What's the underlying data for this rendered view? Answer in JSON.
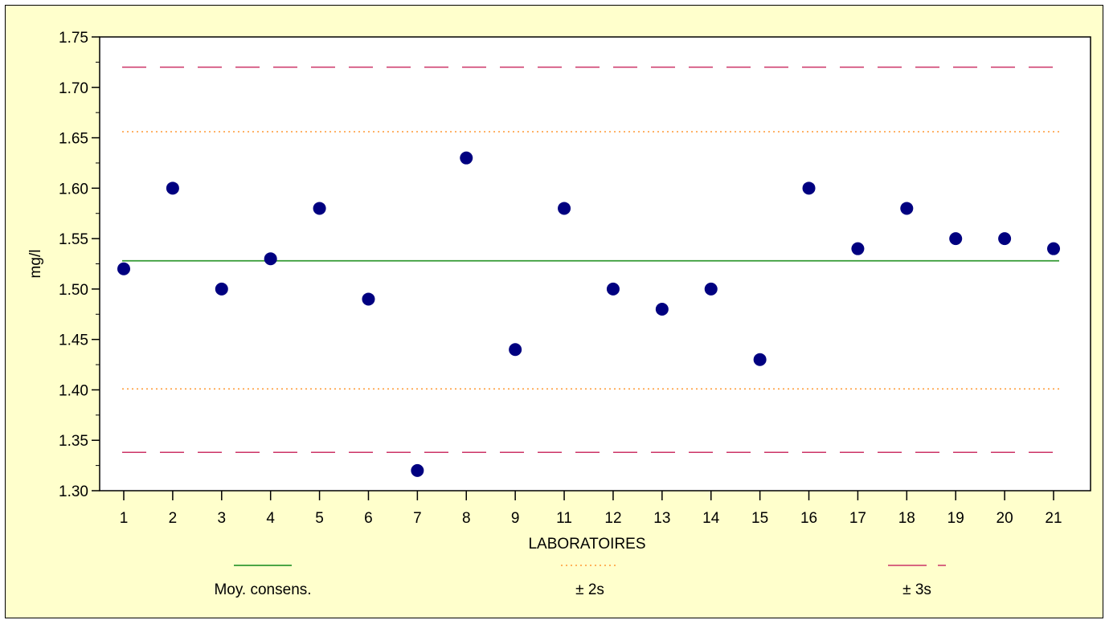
{
  "chart_data": {
    "type": "scatter",
    "title": "",
    "xlabel": "LABORATOIRES",
    "ylabel": "mg/l",
    "ylim": [
      1.3,
      1.75
    ],
    "y_ticks": [
      "1.30",
      "1.35",
      "1.40",
      "1.45",
      "1.50",
      "1.55",
      "1.60",
      "1.65",
      "1.70",
      "1.75"
    ],
    "categories": [
      "1",
      "2",
      "3",
      "4",
      "5",
      "6",
      "7",
      "8",
      "9",
      "11",
      "12",
      "13",
      "14",
      "15",
      "16",
      "17",
      "18",
      "19",
      "20",
      "21"
    ],
    "values": [
      1.52,
      1.6,
      1.5,
      1.53,
      1.58,
      1.49,
      1.32,
      1.63,
      1.44,
      1.58,
      1.5,
      1.48,
      1.5,
      1.43,
      1.6,
      1.54,
      1.58,
      1.55,
      1.55,
      1.54
    ],
    "reference_lines": {
      "mean": 1.528,
      "plus_2s": 1.656,
      "minus_2s": 1.401,
      "plus_3s": 1.72,
      "minus_3s": 1.338
    },
    "legend": [
      {
        "label": "Moy. consens.",
        "style": "solid",
        "color": "#339933"
      },
      {
        "label": "± 2s",
        "style": "dotted",
        "color": "#ff9933"
      },
      {
        "label": "± 3s",
        "style": "dashed",
        "color": "#cc3366"
      }
    ],
    "colors": {
      "background": "#ffffcc",
      "plot_area": "#ffffff",
      "points": "#000080"
    }
  }
}
